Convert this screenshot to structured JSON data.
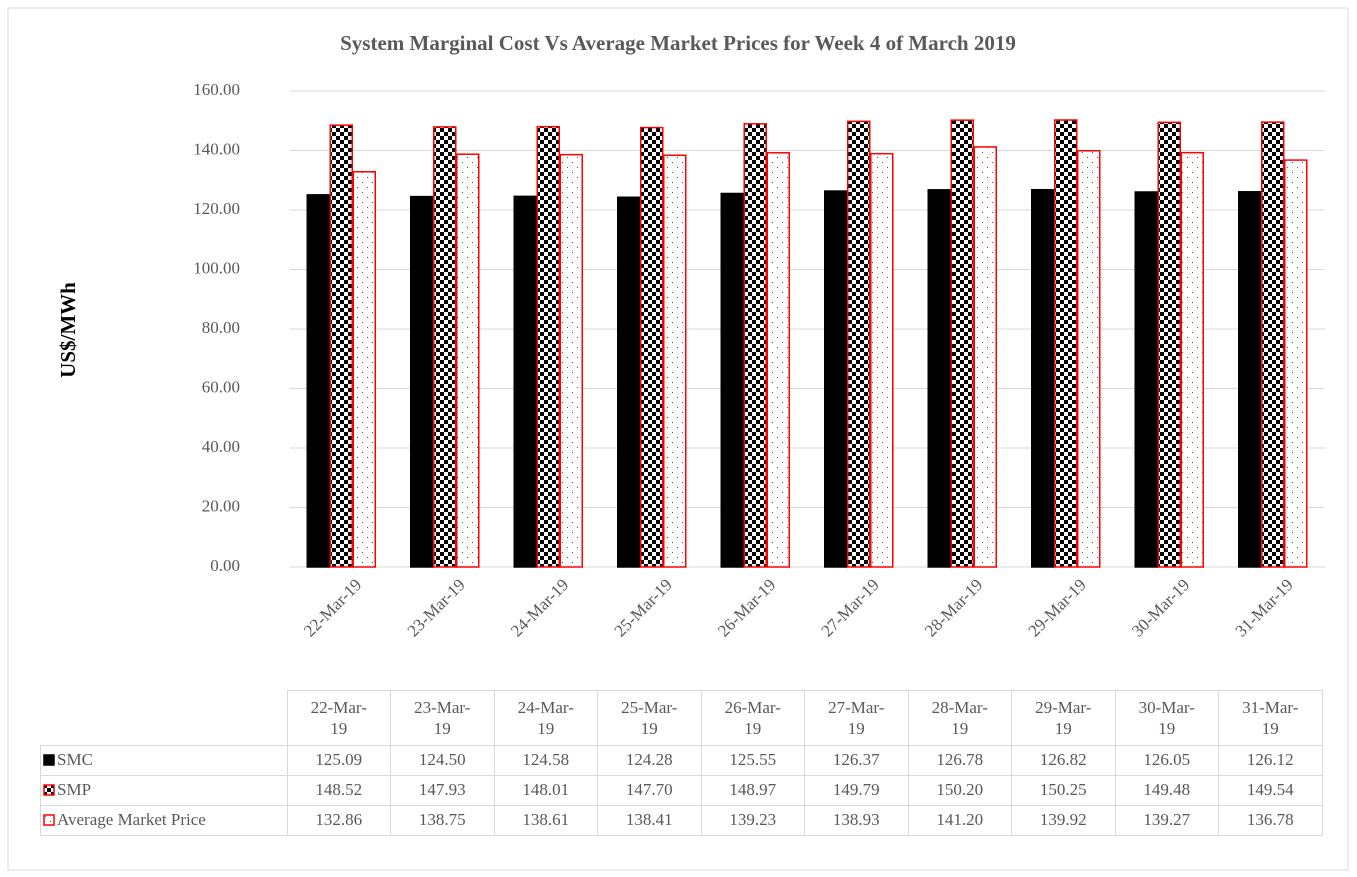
{
  "chart_data": {
    "type": "bar",
    "title": "System Marginal Cost Vs Average Market Prices for Week 4 of  March 2019",
    "y_label": "US$/MWh",
    "categories": [
      "22-Mar-19",
      "23-Mar-19",
      "24-Mar-19",
      "25-Mar-19",
      "26-Mar-19",
      "27-Mar-19",
      "28-Mar-19",
      "29-Mar-19",
      "30-Mar-19",
      "31-Mar-19"
    ],
    "series": [
      {
        "name": "SMC",
        "color": "#000000",
        "pattern": "solid",
        "values": [
          125.09,
          124.5,
          124.58,
          124.28,
          125.55,
          126.37,
          126.78,
          126.82,
          126.05,
          126.12
        ],
        "value_labels": [
          "125.09",
          "124.50",
          "124.58",
          "124.28",
          "125.55",
          "126.37",
          "126.78",
          "126.82",
          "126.05",
          "126.12"
        ]
      },
      {
        "name": "SMP",
        "color": "#ff0000",
        "pattern": "checker",
        "values": [
          148.52,
          147.93,
          148.01,
          147.7,
          148.97,
          149.79,
          150.2,
          150.25,
          149.48,
          149.54
        ],
        "value_labels": [
          "148.52",
          "147.93",
          "148.01",
          "147.70",
          "148.97",
          "149.79",
          "150.20",
          "150.25",
          "149.48",
          "149.54"
        ]
      },
      {
        "name": "Average Market Price",
        "color": "#ff0000",
        "pattern": "dots",
        "values": [
          132.86,
          138.75,
          138.61,
          138.41,
          139.23,
          138.93,
          141.2,
          139.92,
          139.27,
          136.78
        ],
        "value_labels": [
          "132.86",
          "138.75",
          "138.61",
          "138.41",
          "139.23",
          "138.93",
          "141.20",
          "139.92",
          "139.27",
          "136.78"
        ]
      }
    ],
    "ylim": [
      0,
      160
    ],
    "yticks": [
      {
        "value": 0,
        "label": "0.00"
      },
      {
        "value": 20,
        "label": "20.00"
      },
      {
        "value": 40,
        "label": "40.00"
      },
      {
        "value": 60,
        "label": "60.00"
      },
      {
        "value": 80,
        "label": "80.00"
      },
      {
        "value": 100,
        "label": "100.00"
      },
      {
        "value": 120,
        "label": "120.00"
      },
      {
        "value": 140,
        "label": "140.00"
      },
      {
        "value": 160,
        "label": "160.00"
      }
    ],
    "grid": true,
    "data_table": true
  }
}
